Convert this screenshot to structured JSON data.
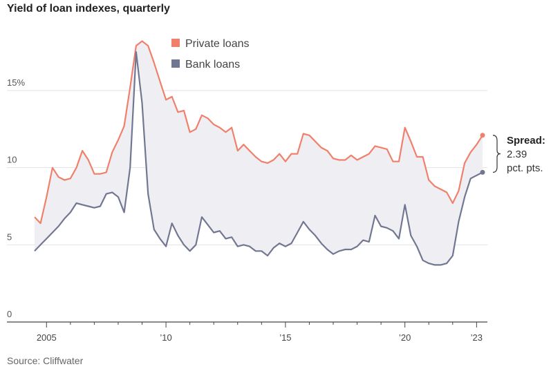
{
  "chart_data": {
    "type": "line",
    "title": "Yield of loan indexes, quarterly",
    "source": "Source: Cliffwater",
    "xlim": [
      2004.25,
      2023.5
    ],
    "ylim": [
      0,
      19
    ],
    "y_ticks": [
      {
        "value": 0,
        "label": "0"
      },
      {
        "value": 5,
        "label": "5"
      },
      {
        "value": 10,
        "label": "10"
      },
      {
        "value": 15,
        "label": "15%"
      }
    ],
    "x_ticks": [
      {
        "value": 2005,
        "label": "2005"
      },
      {
        "value": 2010,
        "label": "’10"
      },
      {
        "value": 2015,
        "label": "’15"
      },
      {
        "value": 2020,
        "label": "’20"
      },
      {
        "value": 2023,
        "label": "’23"
      }
    ],
    "grid": true,
    "legend_position": "top",
    "spread_fill_color": "#eeeef3",
    "series": [
      {
        "name": "Private loans",
        "color": "#f0806b",
        "x": [
          2004.5,
          2004.75,
          2005.0,
          2005.25,
          2005.5,
          2005.75,
          2006.0,
          2006.25,
          2006.5,
          2006.75,
          2007.0,
          2007.25,
          2007.5,
          2007.75,
          2008.0,
          2008.25,
          2008.5,
          2008.75,
          2009.0,
          2009.25,
          2009.5,
          2009.75,
          2010.0,
          2010.25,
          2010.5,
          2010.75,
          2011.0,
          2011.25,
          2011.5,
          2011.75,
          2012.0,
          2012.25,
          2012.5,
          2012.75,
          2013.0,
          2013.25,
          2013.5,
          2013.75,
          2014.0,
          2014.25,
          2014.5,
          2014.75,
          2015.0,
          2015.25,
          2015.5,
          2015.75,
          2016.0,
          2016.25,
          2016.5,
          2016.75,
          2017.0,
          2017.25,
          2017.5,
          2017.75,
          2018.0,
          2018.25,
          2018.5,
          2018.75,
          2019.0,
          2019.25,
          2019.5,
          2019.75,
          2020.0,
          2020.25,
          2020.5,
          2020.75,
          2021.0,
          2021.25,
          2021.5,
          2021.75,
          2022.0,
          2022.25,
          2022.5,
          2022.75,
          2023.0,
          2023.25
        ],
        "values": [
          6.8,
          6.4,
          8.1,
          10.0,
          9.4,
          9.2,
          9.3,
          10.0,
          11.1,
          10.5,
          9.6,
          9.6,
          9.7,
          11.0,
          11.8,
          12.7,
          15.2,
          17.9,
          18.2,
          17.9,
          16.8,
          15.6,
          14.4,
          14.6,
          13.6,
          13.7,
          12.3,
          12.5,
          13.4,
          13.2,
          12.8,
          12.6,
          12.3,
          12.6,
          11.1,
          11.5,
          11.1,
          10.7,
          10.4,
          10.3,
          10.5,
          10.9,
          10.4,
          10.9,
          10.9,
          12.2,
          12.1,
          11.7,
          11.3,
          11.1,
          10.6,
          10.5,
          10.5,
          10.8,
          10.5,
          10.7,
          10.9,
          11.4,
          11.3,
          11.2,
          10.4,
          10.4,
          12.6,
          11.7,
          10.7,
          10.7,
          9.2,
          8.8,
          8.6,
          8.4,
          7.7,
          8.5,
          10.3,
          11.0,
          11.5,
          12.1
        ]
      },
      {
        "name": "Bank loans",
        "color": "#727791",
        "x": [
          2004.5,
          2004.75,
          2005.0,
          2005.25,
          2005.5,
          2005.75,
          2006.0,
          2006.25,
          2006.5,
          2006.75,
          2007.0,
          2007.25,
          2007.5,
          2007.75,
          2008.0,
          2008.25,
          2008.5,
          2008.75,
          2009.0,
          2009.25,
          2009.5,
          2009.75,
          2010.0,
          2010.25,
          2010.5,
          2010.75,
          2011.0,
          2011.25,
          2011.5,
          2011.75,
          2012.0,
          2012.25,
          2012.5,
          2012.75,
          2013.0,
          2013.25,
          2013.5,
          2013.75,
          2014.0,
          2014.25,
          2014.5,
          2014.75,
          2015.0,
          2015.25,
          2015.5,
          2015.75,
          2016.0,
          2016.25,
          2016.5,
          2016.75,
          2017.0,
          2017.25,
          2017.5,
          2017.75,
          2018.0,
          2018.25,
          2018.5,
          2018.75,
          2019.0,
          2019.25,
          2019.5,
          2019.75,
          2020.0,
          2020.25,
          2020.5,
          2020.75,
          2021.0,
          2021.25,
          2021.5,
          2021.75,
          2022.0,
          2022.25,
          2022.5,
          2022.75,
          2023.0,
          2023.25
        ],
        "values": [
          4.6,
          5.0,
          5.4,
          5.8,
          6.2,
          6.7,
          7.1,
          7.7,
          7.6,
          7.5,
          7.4,
          7.5,
          8.3,
          8.4,
          8.1,
          7.1,
          10.0,
          17.5,
          14.2,
          8.3,
          6.0,
          5.4,
          4.9,
          6.4,
          5.6,
          5.0,
          4.6,
          5.0,
          6.8,
          6.3,
          5.8,
          5.9,
          5.4,
          5.5,
          4.9,
          5.0,
          4.9,
          4.6,
          4.6,
          4.3,
          4.8,
          5.1,
          4.9,
          5.1,
          5.8,
          6.5,
          6.0,
          5.6,
          5.1,
          4.7,
          4.4,
          4.6,
          4.7,
          4.7,
          4.9,
          5.3,
          5.2,
          6.9,
          6.2,
          6.1,
          5.9,
          5.4,
          7.6,
          5.6,
          4.9,
          4.0,
          3.8,
          3.7,
          3.7,
          3.8,
          4.3,
          6.5,
          8.1,
          9.3,
          9.5,
          9.7
        ]
      }
    ],
    "annotation": {
      "title": "Spread:",
      "value": "2.39",
      "unit": "pct. pts.",
      "value_number": 2.39
    }
  }
}
